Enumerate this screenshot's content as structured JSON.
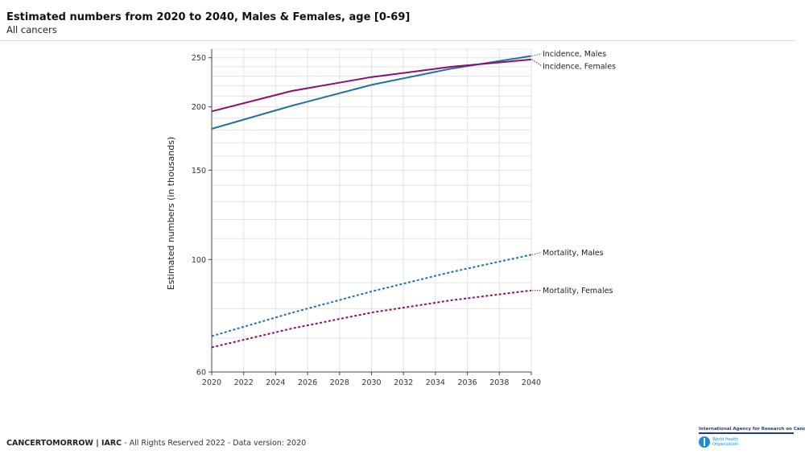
{
  "header": {
    "title": "Estimated numbers from 2020 to 2040, Males & Females, age [0-69]",
    "subtitle": "All cancers"
  },
  "footer": {
    "brand": "CANCERTOMORROW | IARC",
    "rights": " - All Rights Reserved 2022 - Data version: 2020"
  },
  "logo": {
    "iarc": "International Agency for Research on Cancer",
    "who": "World Health\nOrganization"
  },
  "chart_data": {
    "type": "line",
    "ylabel": "Estimated numbers (in thousands)",
    "xlim": [
      2020,
      2040
    ],
    "ylim": [
      60,
      260
    ],
    "y_scale": "log",
    "x_ticks": [
      2020,
      2022,
      2024,
      2026,
      2028,
      2030,
      2032,
      2034,
      2036,
      2038,
      2040
    ],
    "y_ticks": [
      60,
      100,
      150,
      200,
      250
    ],
    "grid": true,
    "series": [
      {
        "name": "Incidence, Males",
        "color": "#2271a3",
        "dash": false,
        "x": [
          2020,
          2025,
          2030,
          2035,
          2040
        ],
        "y": [
          181,
          201,
          221,
          238,
          252
        ]
      },
      {
        "name": "Incidence, Females",
        "color": "#8c0f6e",
        "dash": false,
        "x": [
          2020,
          2025,
          2030,
          2035,
          2040
        ],
        "y": [
          196,
          215,
          229,
          240,
          248
        ]
      },
      {
        "name": "Mortality, Males",
        "color": "#2271a3",
        "dash": true,
        "x": [
          2020,
          2025,
          2030,
          2035,
          2040
        ],
        "y": [
          70.6,
          78.5,
          86.5,
          94.5,
          102.2
        ]
      },
      {
        "name": "Mortality, Females",
        "color": "#8c0f6e",
        "dash": true,
        "x": [
          2020,
          2025,
          2030,
          2035,
          2040
        ],
        "y": [
          67.1,
          73.1,
          78.6,
          83.1,
          86.9
        ]
      }
    ]
  }
}
